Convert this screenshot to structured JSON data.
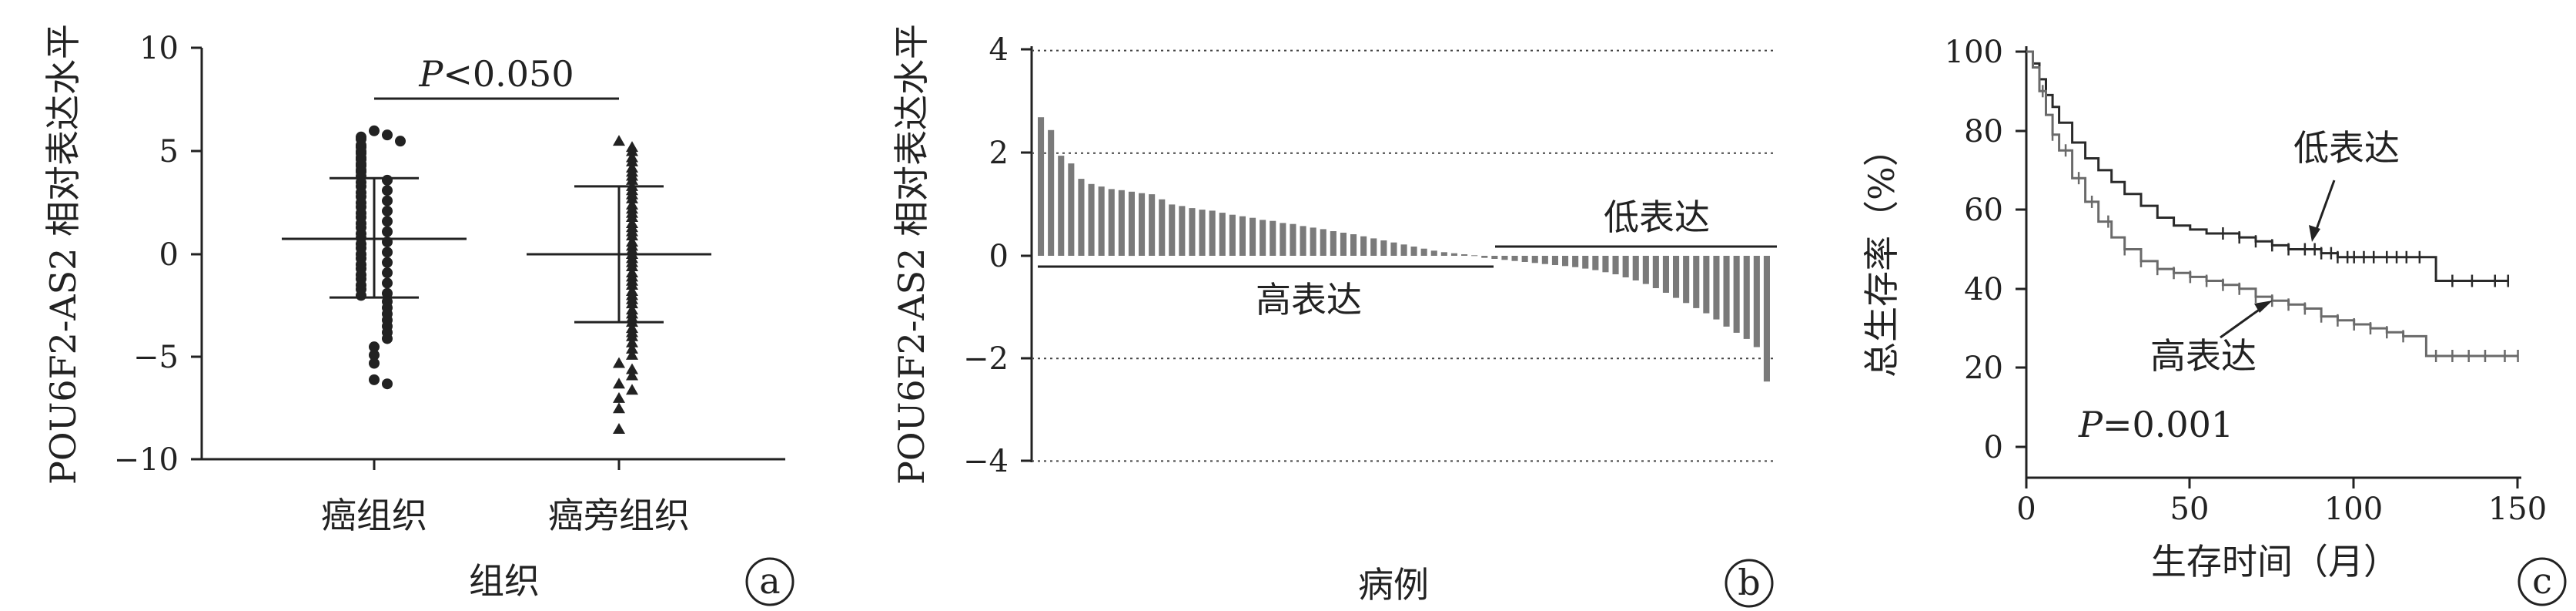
{
  "chart_data": [
    {
      "panel": "a",
      "type": "scatter",
      "xlabel": "组织",
      "ylabel": "POU6F2-AS2 相对表达水平",
      "ylim": [
        -10,
        10
      ],
      "yticks": [
        "10",
        "5",
        "0",
        "−5",
        "−10"
      ],
      "categories": [
        "癌组织",
        "癌旁组织"
      ],
      "annotation_prefix": "P",
      "annotation_rest": "<0.050",
      "panel_label": "a",
      "series": [
        {
          "category": "癌组织",
          "marker": "circle",
          "mean": 0.75,
          "sd_upper": 3.7,
          "sd_lower": -2.1,
          "values": [
            6.0,
            5.8,
            5.7,
            5.6,
            5.5,
            5.3,
            5.2,
            5.0,
            4.9,
            4.7,
            4.6,
            4.4,
            4.3,
            4.1,
            4.0,
            3.8,
            3.6,
            3.5,
            3.3,
            3.1,
            3.0,
            2.8,
            2.6,
            2.5,
            2.3,
            2.1,
            2.0,
            1.8,
            1.6,
            1.5,
            1.3,
            1.1,
            1.0,
            0.8,
            0.6,
            0.5,
            0.3,
            0.1,
            0.0,
            -0.2,
            -0.4,
            -0.5,
            -0.7,
            -0.9,
            -1.0,
            -1.2,
            -1.4,
            -1.5,
            -1.7,
            -1.9,
            -2.0,
            -2.3,
            -2.6,
            -2.9,
            -3.2,
            -3.5,
            -3.8,
            -4.1,
            -4.5,
            -4.9,
            -5.3,
            -6.1,
            -6.3
          ]
        },
        {
          "category": "癌旁组织",
          "marker": "triangle",
          "mean": 0.0,
          "sd_upper": 3.3,
          "sd_lower": -3.3,
          "values": [
            5.5,
            5.2,
            5.0,
            4.7,
            4.5,
            4.2,
            4.0,
            3.8,
            3.6,
            3.3,
            3.1,
            2.9,
            2.7,
            2.4,
            2.2,
            2.0,
            1.8,
            1.5,
            1.3,
            1.1,
            0.9,
            0.6,
            0.4,
            0.2,
            0.0,
            -0.2,
            -0.4,
            -0.6,
            -0.9,
            -1.1,
            -1.3,
            -1.5,
            -1.8,
            -2.0,
            -2.2,
            -2.4,
            -2.7,
            -2.9,
            -3.1,
            -3.3,
            -3.6,
            -3.8,
            -4.0,
            -4.3,
            -4.6,
            -4.9,
            -5.3,
            -5.6,
            -5.9,
            -6.3,
            -6.6,
            -7.0,
            -7.5,
            -8.5
          ]
        }
      ]
    },
    {
      "panel": "b",
      "type": "bar",
      "xlabel": "病例",
      "ylabel": "POU6F2-AS2 相对表达水平",
      "ylim": [
        -4,
        4
      ],
      "yticks": [
        "4",
        "2",
        "0",
        "−2",
        "−4"
      ],
      "grid": true,
      "group_labels": [
        "高表达",
        "低表达"
      ],
      "panel_label": "b",
      "values": [
        2.7,
        2.45,
        1.95,
        1.8,
        1.5,
        1.4,
        1.35,
        1.3,
        1.28,
        1.25,
        1.22,
        1.2,
        1.1,
        1.0,
        0.97,
        0.93,
        0.9,
        0.88,
        0.84,
        0.8,
        0.77,
        0.74,
        0.7,
        0.68,
        0.64,
        0.62,
        0.58,
        0.55,
        0.52,
        0.48,
        0.45,
        0.42,
        0.38,
        0.34,
        0.3,
        0.26,
        0.22,
        0.18,
        0.14,
        0.1,
        0.07,
        0.05,
        0.03,
        0.01,
        -0.04,
        -0.06,
        -0.08,
        -0.1,
        -0.12,
        -0.14,
        -0.16,
        -0.18,
        -0.2,
        -0.22,
        -0.25,
        -0.28,
        -0.32,
        -0.36,
        -0.42,
        -0.48,
        -0.55,
        -0.63,
        -0.72,
        -0.82,
        -0.92,
        -1.02,
        -1.12,
        -1.24,
        -1.38,
        -1.5,
        -1.62,
        -1.78,
        -2.45
      ]
    },
    {
      "panel": "c",
      "type": "line",
      "xlabel": "生存时间（月）",
      "ylabel": "总生存率（%）",
      "xlim": [
        0,
        150
      ],
      "ylim": [
        0,
        100
      ],
      "xticks": [
        "0",
        "50",
        "100",
        "150"
      ],
      "yticks": [
        "100",
        "80",
        "60",
        "40",
        "20",
        "0"
      ],
      "annotation_prefix": "P",
      "annotation_rest": "=0.001",
      "panel_label": "c",
      "series": [
        {
          "name": "低表达",
          "color": "#2a2a2a",
          "x": [
            0,
            2,
            4,
            6,
            8,
            10,
            14,
            18,
            22,
            26,
            30,
            35,
            40,
            45,
            50,
            55,
            60,
            65,
            70,
            75,
            80,
            85,
            90,
            95,
            100,
            105,
            110,
            115,
            120,
            121,
            122,
            125,
            128,
            130,
            140,
            147
          ],
          "y": [
            100,
            97,
            93,
            89,
            86,
            82,
            77,
            73,
            70,
            67,
            64,
            61,
            58,
            56,
            55,
            54,
            54,
            53,
            52,
            51,
            50,
            50,
            49,
            48,
            48,
            48,
            48,
            48,
            48,
            48,
            48,
            42,
            42,
            42,
            42,
            42
          ],
          "censor_x": [
            60,
            65,
            70,
            75,
            80,
            85,
            88,
            90,
            93,
            95,
            98,
            100,
            103,
            106,
            110,
            113,
            116,
            120,
            130,
            136,
            143,
            147
          ]
        },
        {
          "name": "高表达",
          "color": "#6a6a6a",
          "x": [
            0,
            2,
            4,
            6,
            8,
            10,
            14,
            18,
            22,
            26,
            30,
            35,
            40,
            45,
            50,
            55,
            60,
            65,
            70,
            75,
            80,
            85,
            90,
            95,
            100,
            105,
            110,
            115,
            118,
            120,
            122,
            125,
            130,
            140,
            150
          ],
          "y": [
            100,
            96,
            90,
            84,
            79,
            75,
            68,
            62,
            57,
            53,
            50,
            47,
            45,
            44,
            43,
            42,
            41,
            40,
            38,
            37,
            36,
            35,
            33,
            32,
            31,
            30,
            29,
            28,
            28,
            28,
            23,
            23,
            23,
            23,
            23
          ],
          "censor_x": [
            5,
            8,
            12,
            16,
            20,
            25,
            30,
            35,
            40,
            45,
            50,
            55,
            60,
            65,
            70,
            75,
            80,
            85,
            90,
            95,
            100,
            105,
            110,
            115,
            125,
            130,
            135,
            140,
            146,
            150
          ]
        }
      ]
    }
  ]
}
